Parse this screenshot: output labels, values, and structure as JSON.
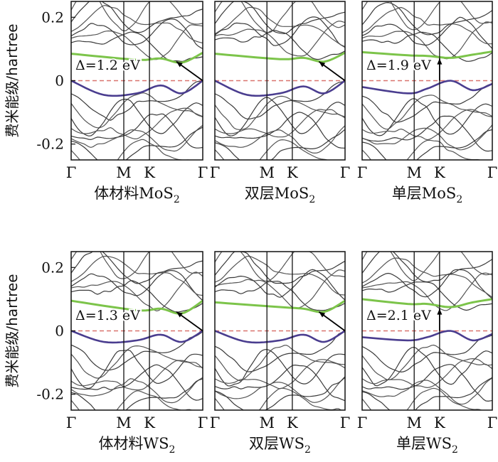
{
  "y_axis_label": "费米能级/hartree",
  "chart_data": [
    {
      "type": "line",
      "title": "体材料MoS",
      "title_sub": "2",
      "x_ticks": [
        "Γ",
        "M",
        "K",
        "Γ"
      ],
      "ylim": [
        -0.25,
        0.25
      ],
      "y_ticks": [
        "0.2",
        "0",
        "-0.2"
      ],
      "gap_label": "Δ=1.2 eV",
      "gap_ev": 1.2,
      "gap_type": "indirect",
      "vbm_k": "Γ",
      "cbm_k": "K-Γ",
      "fermi_level": 0.0,
      "cb_green": [
        [
          0,
          0.085
        ],
        [
          0.5,
          0.066
        ],
        [
          0.68,
          0.07
        ],
        [
          0.84,
          0.057
        ],
        [
          1,
          0.088
        ]
      ],
      "vb_blue": [
        [
          0,
          0.0
        ],
        [
          0.25,
          -0.045
        ],
        [
          0.5,
          -0.04
        ],
        [
          0.68,
          -0.015
        ],
        [
          0.84,
          -0.04
        ],
        [
          1,
          0.0
        ]
      ]
    },
    {
      "type": "line",
      "title": "双层MoS",
      "title_sub": "2",
      "x_ticks": [
        "Γ",
        "M",
        "K",
        "Γ"
      ],
      "ylim": [
        -0.25,
        0.25
      ],
      "y_ticks": [],
      "gap_label": "",
      "gap_ev": null,
      "gap_type": "indirect",
      "vbm_k": "Γ",
      "cbm_k": "K-Γ",
      "fermi_level": 0.0,
      "cb_green": [
        [
          0,
          0.085
        ],
        [
          0.5,
          0.068
        ],
        [
          0.68,
          0.072
        ],
        [
          0.84,
          0.06
        ],
        [
          1,
          0.088
        ]
      ],
      "vb_blue": [
        [
          0,
          0.0
        ],
        [
          0.25,
          -0.045
        ],
        [
          0.5,
          -0.04
        ],
        [
          0.68,
          -0.018
        ],
        [
          0.84,
          -0.04
        ],
        [
          1,
          0.0
        ]
      ]
    },
    {
      "type": "line",
      "title": "单层MoS",
      "title_sub": "2",
      "x_ticks": [
        "Γ",
        "M",
        "K",
        "Γ"
      ],
      "ylim": [
        -0.25,
        0.25
      ],
      "y_ticks": [],
      "gap_label": "Δ=1.9 eV",
      "gap_ev": 1.9,
      "gap_type": "direct",
      "vbm_k": "K",
      "cbm_k": "K",
      "fermi_level": 0.0,
      "cb_green": [
        [
          0,
          0.09
        ],
        [
          0.35,
          0.08
        ],
        [
          0.5,
          0.078
        ],
        [
          0.68,
          0.072
        ],
        [
          0.85,
          0.082
        ],
        [
          1,
          0.092
        ]
      ],
      "vb_blue": [
        [
          0,
          -0.02
        ],
        [
          0.35,
          -0.04
        ],
        [
          0.5,
          -0.025
        ],
        [
          0.68,
          0.0
        ],
        [
          0.85,
          -0.03
        ],
        [
          1,
          -0.01
        ]
      ]
    },
    {
      "type": "line",
      "title": "体材料WS",
      "title_sub": "2",
      "x_ticks": [
        "Γ",
        "M",
        "K",
        "Γ"
      ],
      "ylim": [
        -0.25,
        0.25
      ],
      "y_ticks": [
        "0.2",
        "0",
        "-0.2"
      ],
      "gap_label": "Δ=1.3 eV",
      "gap_ev": 1.3,
      "gap_type": "indirect",
      "vbm_k": "Γ",
      "cbm_k": "K-Γ",
      "fermi_level": 0.0,
      "cb_green": [
        [
          0,
          0.095
        ],
        [
          0.5,
          0.065
        ],
        [
          0.68,
          0.07
        ],
        [
          0.84,
          0.055
        ],
        [
          1,
          0.095
        ]
      ],
      "vb_blue": [
        [
          0,
          0.0
        ],
        [
          0.25,
          -0.035
        ],
        [
          0.5,
          -0.03
        ],
        [
          0.68,
          -0.012
        ],
        [
          0.84,
          -0.035
        ],
        [
          1,
          0.0
        ]
      ]
    },
    {
      "type": "line",
      "title": "双层WS",
      "title_sub": "2",
      "x_ticks": [
        "Γ",
        "M",
        "K",
        "Γ"
      ],
      "ylim": [
        -0.25,
        0.25
      ],
      "y_ticks": [],
      "gap_label": "",
      "gap_ev": null,
      "gap_type": "indirect",
      "vbm_k": "Γ",
      "cbm_k": "K-Γ",
      "fermi_level": 0.0,
      "cb_green": [
        [
          0,
          0.09
        ],
        [
          0.5,
          0.075
        ],
        [
          0.68,
          0.07
        ],
        [
          0.84,
          0.06
        ],
        [
          1,
          0.095
        ]
      ],
      "vb_blue": [
        [
          0,
          0.0
        ],
        [
          0.25,
          -0.035
        ],
        [
          0.5,
          -0.03
        ],
        [
          0.68,
          -0.012
        ],
        [
          0.84,
          -0.035
        ],
        [
          1,
          0.0
        ]
      ]
    },
    {
      "type": "line",
      "title": "单层WS",
      "title_sub": "2",
      "x_ticks": [
        "Γ",
        "M",
        "K",
        "Γ"
      ],
      "ylim": [
        -0.25,
        0.25
      ],
      "y_ticks": [],
      "gap_label": "Δ=2.1 eV",
      "gap_ev": 2.1,
      "gap_type": "direct",
      "vbm_k": "K",
      "cbm_k": "K",
      "fermi_level": 0.0,
      "cb_green": [
        [
          0,
          0.1
        ],
        [
          0.35,
          0.085
        ],
        [
          0.5,
          0.085
        ],
        [
          0.68,
          0.075
        ],
        [
          0.85,
          0.09
        ],
        [
          1,
          0.1
        ]
      ],
      "vb_blue": [
        [
          0,
          -0.02
        ],
        [
          0.35,
          -0.03
        ],
        [
          0.5,
          -0.02
        ],
        [
          0.68,
          0.0
        ],
        [
          0.85,
          -0.03
        ],
        [
          1,
          -0.01
        ]
      ]
    }
  ],
  "colors": {
    "band": "#3a3a3a",
    "conduction": "#7cc44a",
    "valence": "#4a3d8f",
    "fermi": "#d9736e",
    "frame": "#111111"
  }
}
